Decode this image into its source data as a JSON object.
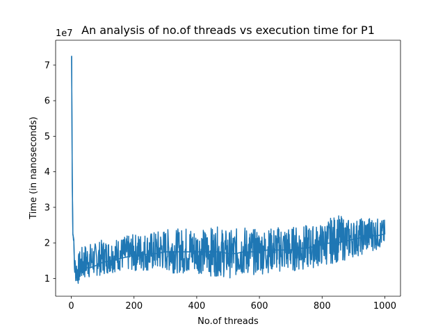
{
  "chart_data": {
    "type": "line",
    "title": "An analysis of no.of threads vs execution time for P1",
    "xlabel": "No.of threads",
    "ylabel": "Time (in nanoseconds)",
    "y_offset_label": "1e7",
    "xlim": [
      -50,
      1050
    ],
    "ylim": [
      0.5,
      7.7
    ],
    "y_multiplier": 10000000,
    "xticks": [
      0,
      200,
      400,
      600,
      800,
      1000
    ],
    "xtick_labels": [
      "0",
      "200",
      "400",
      "600",
      "800",
      "1000"
    ],
    "yticks": [
      1,
      2,
      3,
      4,
      5,
      6,
      7
    ],
    "ytick_labels": [
      "1",
      "2",
      "3",
      "4",
      "5",
      "6",
      "7"
    ],
    "grid": false,
    "color": "#1f77b4",
    "x": [
      1,
      3,
      5,
      8,
      10,
      15,
      20,
      25,
      30,
      40,
      50,
      60,
      75,
      100,
      125,
      150,
      175,
      200,
      225,
      250,
      275,
      300,
      325,
      350,
      375,
      400,
      425,
      450,
      475,
      500,
      525,
      550,
      575,
      600,
      625,
      650,
      675,
      700,
      725,
      750,
      775,
      800,
      825,
      850,
      875,
      900,
      925,
      950,
      975,
      1000
    ],
    "values": [
      7.25,
      3.9,
      2.25,
      2.1,
      1.4,
      1.2,
      1.1,
      1.15,
      1.2,
      1.25,
      1.3,
      1.3,
      1.35,
      1.45,
      1.5,
      1.55,
      1.6,
      1.65,
      1.65,
      1.7,
      1.7,
      1.75,
      1.75,
      1.75,
      1.75,
      1.75,
      1.75,
      1.75,
      1.75,
      1.7,
      1.7,
      1.75,
      1.75,
      1.75,
      1.8,
      1.8,
      1.8,
      1.8,
      1.85,
      1.85,
      1.9,
      1.95,
      2.0,
      2.0,
      2.05,
      2.1,
      2.15,
      2.2,
      2.2,
      2.25
    ],
    "band_upper": [
      7.25,
      4.0,
      2.3,
      2.1,
      1.7,
      1.6,
      1.6,
      1.75,
      1.85,
      1.95,
      2.0,
      2.0,
      2.0,
      2.1,
      2.1,
      2.15,
      2.2,
      2.25,
      2.3,
      2.3,
      2.35,
      2.4,
      2.4,
      2.4,
      2.5,
      2.4,
      2.4,
      2.45,
      2.45,
      2.35,
      2.4,
      2.5,
      2.4,
      2.4,
      2.4,
      2.45,
      2.5,
      2.45,
      2.5,
      2.5,
      2.5,
      2.55,
      2.7,
      2.8,
      2.7,
      2.65,
      2.7,
      2.75,
      2.7,
      2.65
    ],
    "band_lower": [
      7.25,
      3.8,
      2.2,
      2.0,
      1.0,
      0.85,
      0.8,
      0.85,
      0.9,
      0.95,
      1.0,
      1.0,
      1.05,
      1.1,
      1.15,
      1.2,
      1.2,
      1.2,
      1.2,
      1.2,
      1.2,
      1.2,
      1.15,
      1.15,
      1.1,
      1.15,
      1.1,
      1.05,
      1.05,
      1.0,
      1.05,
      1.05,
      1.1,
      1.1,
      1.15,
      1.2,
      1.15,
      1.2,
      1.2,
      1.25,
      1.3,
      1.35,
      1.4,
      1.45,
      1.5,
      1.6,
      1.65,
      1.75,
      1.8,
      1.9
    ]
  }
}
